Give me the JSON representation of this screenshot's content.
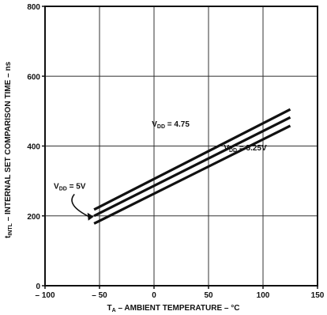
{
  "chart_data": {
    "type": "line",
    "title": "",
    "xlabel": "T_A – AMBIENT TEMPERATURE – °C",
    "ylabel": "t_INTL – INTERNAL SET COMPARISON TIME – ns",
    "xlim": [
      -100,
      150
    ],
    "ylim": [
      0,
      800
    ],
    "x_ticks": [
      -100,
      -50,
      0,
      50,
      100,
      150
    ],
    "x_tick_labels": [
      "– 100",
      "– 50",
      "0",
      "50",
      "100",
      "150"
    ],
    "y_ticks": [
      0,
      200,
      400,
      600,
      800
    ],
    "y_tick_labels": [
      "0",
      "200",
      "400",
      "600",
      "800"
    ],
    "grid": true,
    "series": [
      {
        "name": "V_DD = 4.75",
        "x": [
          -55,
          125
        ],
        "y": [
          218,
          505
        ]
      },
      {
        "name": "V_DD = 5V",
        "x": [
          -55,
          125
        ],
        "y": [
          200,
          482
        ]
      },
      {
        "name": "V_DD = 5.25V",
        "x": [
          -55,
          125
        ],
        "y": [
          178,
          458
        ]
      }
    ],
    "annotations": [
      {
        "id": "vdd-475",
        "text_main": "V",
        "text_sub": "DD",
        "text_rest": " = 4.75"
      },
      {
        "id": "vdd-5",
        "text_main": "V",
        "text_sub": "DD",
        "text_rest": " = 5V"
      },
      {
        "id": "vdd-525",
        "text_main": "V",
        "text_sub": "DD",
        "text_rest": " = 5.25V"
      }
    ],
    "axis_label_parts": {
      "x_main": "T",
      "x_sub": "A",
      "x_rest": " – AMBIENT TEMPERATURE – °C",
      "y_main": "t",
      "y_sub": "INTL",
      "y_rest": " – INTERNAL SET COMPARISON TIME – ns"
    }
  }
}
